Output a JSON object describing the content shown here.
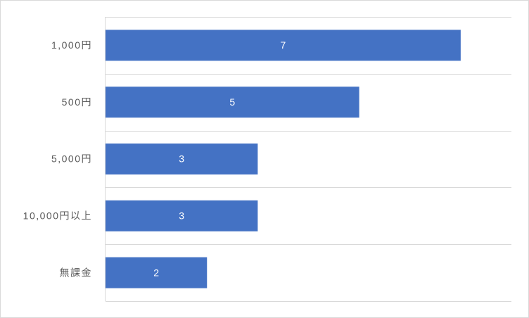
{
  "chart_data": {
    "type": "bar",
    "orientation": "horizontal",
    "categories": [
      "1,000円",
      "500円",
      "5,000円",
      "10,000円以上",
      "無課金"
    ],
    "values": [
      7,
      5,
      3,
      3,
      2
    ],
    "color": "#4472c4",
    "xlim": [
      0,
      8
    ]
  }
}
